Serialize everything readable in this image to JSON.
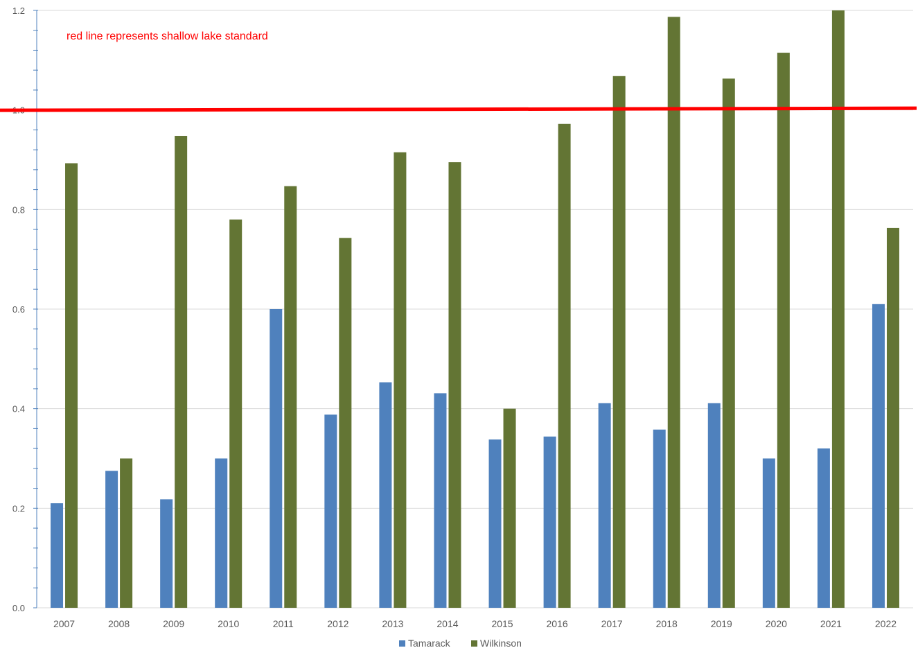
{
  "chart_data": {
    "type": "bar",
    "title": "",
    "xlabel": "",
    "ylabel": "",
    "ylim": [
      0,
      1.2
    ],
    "yticks": [
      "0.0",
      "0.2",
      "0.4",
      "0.6",
      "0.8",
      "1.0",
      "1.2"
    ],
    "categories": [
      "2007",
      "2008",
      "2009",
      "2010",
      "2011",
      "2012",
      "2013",
      "2014",
      "2015",
      "2016",
      "2017",
      "2018",
      "2019",
      "2020",
      "2021",
      "2022"
    ],
    "series": [
      {
        "name": "Tamarack",
        "color": "#4f81bd",
        "values": [
          0.21,
          0.275,
          0.218,
          0.3,
          0.6,
          0.388,
          0.453,
          0.431,
          0.338,
          0.344,
          0.411,
          0.358,
          0.411,
          0.3,
          0.32,
          0.61
        ]
      },
      {
        "name": "Wilkinson",
        "color": "#637534",
        "values": [
          0.893,
          0.3,
          0.948,
          0.78,
          0.847,
          0.743,
          0.915,
          0.895,
          0.4,
          0.972,
          1.068,
          1.187,
          1.063,
          1.115,
          1.2,
          0.763
        ]
      }
    ],
    "reference_line": {
      "value": 1.0,
      "color": "#ff0000",
      "annotation": "red line represents shallow lake standard"
    },
    "grid": true,
    "legend": "bottom-center"
  }
}
